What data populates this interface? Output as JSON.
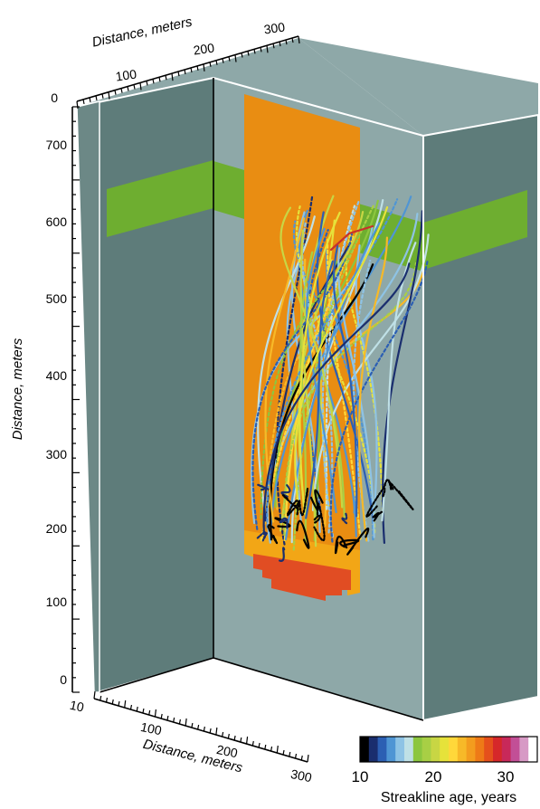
{
  "axes": {
    "top_label": "Distance, meters",
    "top_ticks": [
      "100",
      "200",
      "300"
    ],
    "vertical_label": "Distance, meters",
    "vertical_ticks": [
      "0",
      "100",
      "200",
      "300",
      "400",
      "500",
      "600",
      "700"
    ],
    "bottom_label": "Distance, meters",
    "bottom_ticks": [
      "10",
      "100",
      "200",
      "300"
    ]
  },
  "colorbar": {
    "title": "Streakline age, years",
    "ticks": [
      "10",
      "20",
      "30"
    ],
    "colors": [
      "#000000",
      "#1a2e6e",
      "#2c5fb3",
      "#4f95d4",
      "#8ec3e5",
      "#bfe0e6",
      "#8cc63f",
      "#a8cf45",
      "#c8d644",
      "#e6e23a",
      "#ffd83a",
      "#f7b928",
      "#f39c1e",
      "#ee7a17",
      "#e5501c",
      "#d6282a",
      "#c8295a",
      "#c24f96",
      "#d79ac5",
      "#ffffff"
    ]
  },
  "colors": {
    "wall": "#5e7c7a",
    "top_face": "#8ea8a8",
    "green_layer": "#6eae30",
    "plume_orange": "#e98d12",
    "source_light": "#f2a616",
    "source_red": "#e14d23"
  }
}
